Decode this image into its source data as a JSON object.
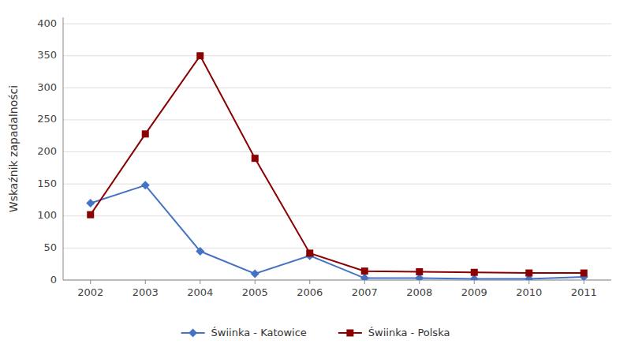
{
  "chart_data": {
    "type": "line",
    "y_label": "Wskaźnik zapadalności",
    "x": [
      2002,
      2003,
      2004,
      2005,
      2006,
      2007,
      2008,
      2009,
      2010,
      2011
    ],
    "xlim": [
      2001.5,
      2011.5
    ],
    "xticks": [
      2002,
      2003,
      2004,
      2005,
      2006,
      2007,
      2008,
      2009,
      2010,
      2011
    ],
    "ylim": [
      0,
      410
    ],
    "yticks": [
      0,
      50,
      100,
      150,
      200,
      250,
      300,
      350,
      400
    ],
    "grid": true,
    "legend": "bottom",
    "series": [
      {
        "name": "Świinka - Katowice",
        "color": "#4472C4",
        "marker": "diamond",
        "values": [
          120,
          148,
          45,
          10,
          38,
          3,
          3,
          2,
          2,
          5
        ]
      },
      {
        "name": "Świinka - Polska",
        "color": "#8B0000",
        "marker": "square",
        "values": [
          102,
          228,
          350,
          190,
          42,
          14,
          13,
          12,
          11,
          11
        ]
      }
    ]
  }
}
